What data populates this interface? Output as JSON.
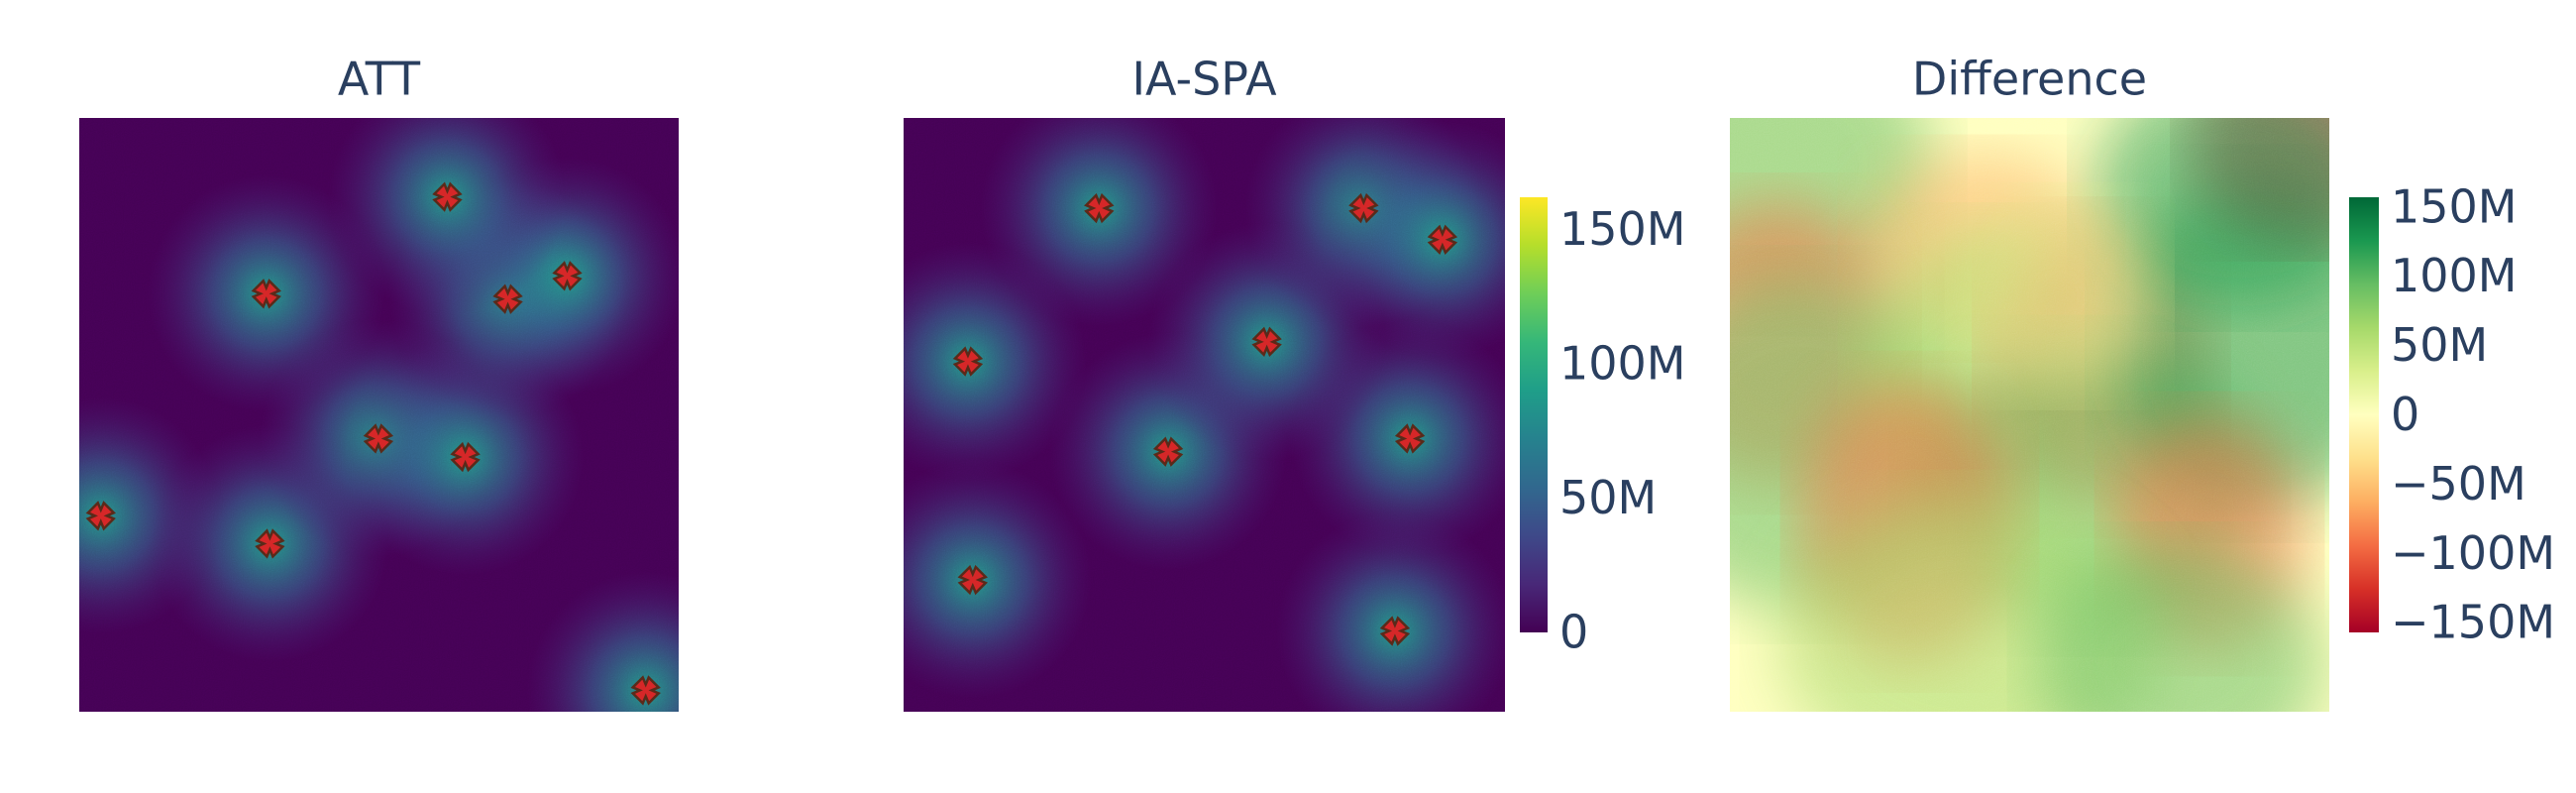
{
  "chart_data": [
    {
      "type": "heatmap",
      "title": "ATT",
      "colorscale": [
        "#440154",
        "#482878",
        "#3e4989",
        "#31688e",
        "#26828e",
        "#1f9e89",
        "#35b779",
        "#6ece58",
        "#b5de2b",
        "#fde725"
      ],
      "xlim": [
        0,
        100
      ],
      "ylim": [
        100,
        0
      ],
      "markers": {
        "color": "#d62728",
        "x": [
          94.5,
          3.6,
          31.8,
          49.9,
          64.4,
          31.2,
          71.5,
          81.4,
          61.4
        ],
        "y": [
          3.6,
          33,
          28.3,
          46,
          42.9,
          70.4,
          69.5,
          73.4,
          86.7
        ]
      }
    },
    {
      "type": "heatmap",
      "title": "IA-SPA",
      "colorscale": [
        "#440154",
        "#482878",
        "#3e4989",
        "#31688e",
        "#26828e",
        "#1f9e89",
        "#35b779",
        "#6ece58",
        "#b5de2b",
        "#fde725"
      ],
      "xlim": [
        0,
        100
      ],
      "ylim": [
        100,
        0
      ],
      "markers": {
        "color": "#d62728",
        "x": [
          81.7,
          11.5,
          44.0,
          84.2,
          10.7,
          60.4,
          32.5,
          76.5,
          89.6
        ],
        "y": [
          13.6,
          22.2,
          43.8,
          46,
          59,
          62.3,
          84.8,
          84.8,
          79.5
        ]
      },
      "colorbar": {
        "lim": [
          0,
          162000000
        ],
        "ticks": [
          0,
          {
            "value": 50000000,
            "label": "50M"
          },
          {
            "value": 100000000,
            "label": "100M"
          },
          {
            "value": 150000000,
            "label": "150M"
          }
        ]
      }
    },
    {
      "type": "heatmap",
      "title": "Difference",
      "colorscale": [
        "#a50026",
        "#d73027",
        "#f46d43",
        "#fdae61",
        "#fee08b",
        "#ffffbf",
        "#d9ef8b",
        "#a6d96a",
        "#66bd63",
        "#1a9850",
        "#006837"
      ],
      "colorbar": {
        "lim": [
          -157000000,
          157000000
        ],
        "ticks": [
          {
            "value": -150000000,
            "label": "−150M"
          },
          {
            "value": -100000000,
            "label": "−100M"
          },
          {
            "value": -50000000,
            "label": "−50M"
          },
          0,
          {
            "value": 50000000,
            "label": "50M"
          },
          {
            "value": 100000000,
            "label": "100M"
          },
          {
            "value": 150000000,
            "label": "150M"
          }
        ]
      }
    }
  ]
}
